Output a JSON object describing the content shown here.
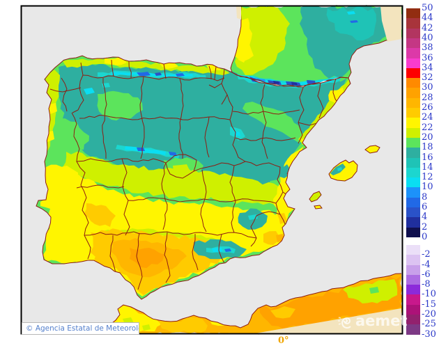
{
  "map": {
    "attribution": "© Agencia Estatal de Meteorología",
    "watermark": "aemet",
    "longitude_label": "0°"
  },
  "colors": {
    "sea": "#E8E8E8",
    "domain_edge": "#F3E4BE",
    "boundary": "#8E1C12",
    "frame": "#000000",
    "attribution_text": "#5580CC",
    "longitude_label_color": "#F0A500",
    "watermark_color": "rgba(255,255,255,0.88)"
  },
  "colorbar": {
    "label_color": "#2B38C8",
    "labels": [
      "50",
      "44",
      "42",
      "40",
      "38",
      "36",
      "34",
      "32",
      "30",
      "28",
      "26",
      "24",
      "22",
      "20",
      "18",
      "16",
      "14",
      "12",
      "10",
      "8",
      "6",
      "4",
      "2",
      "0",
      "-2",
      "-4",
      "-6",
      "-8",
      "-10",
      "-15",
      "-20",
      "-25",
      "-30"
    ],
    "swatch_colors": [
      "#922D11",
      "#A8343B",
      "#B23560",
      "#C43784",
      "#DC39A8",
      "#F93CCE",
      "#FE0000",
      "#FF8A00",
      "#FFA200",
      "#FFB600",
      "#FFCB00",
      "#FFF500",
      "#CFF000",
      "#5CE45C",
      "#2EAFA0",
      "#1FC3B6",
      "#1CD6CF",
      "#0ADEF2",
      "#1C92FA",
      "#2169E6",
      "#2A52C8",
      "#202F9E",
      "#10104E",
      "#EBDFF8",
      "#DCC3F2",
      "#C8A0EA",
      "#AC6CE2",
      "#8C2ADA",
      "#C8188C",
      "#AC1278",
      "#92216E",
      "#7D3985"
    ],
    "gap_after_swatch_index": 22
  },
  "palette": {
    "c44_50": "#922D11",
    "c42_44": "#A8343B",
    "c40_42": "#B23560",
    "c38_40": "#C43784",
    "c36_38": "#DC39A8",
    "c34_36": "#F93CCE",
    "c32_34": "#FE0000",
    "c30_32": "#FF8A00",
    "c28_30": "#FFA200",
    "c26_28": "#FFB600",
    "c24_26": "#FFCB00",
    "c22_24": "#FFF500",
    "c20_22": "#CFF000",
    "c18_20": "#5CE45C",
    "c16_18": "#2EAFA0",
    "c14_16": "#1FC3B6",
    "c12_14": "#1CD6CF",
    "c10_12": "#0ADEF2",
    "c8_10": "#1C92FA",
    "c6_8": "#2169E6",
    "c4_6": "#2A52C8",
    "c2_4": "#202F9E",
    "c0_2": "#10104E"
  }
}
